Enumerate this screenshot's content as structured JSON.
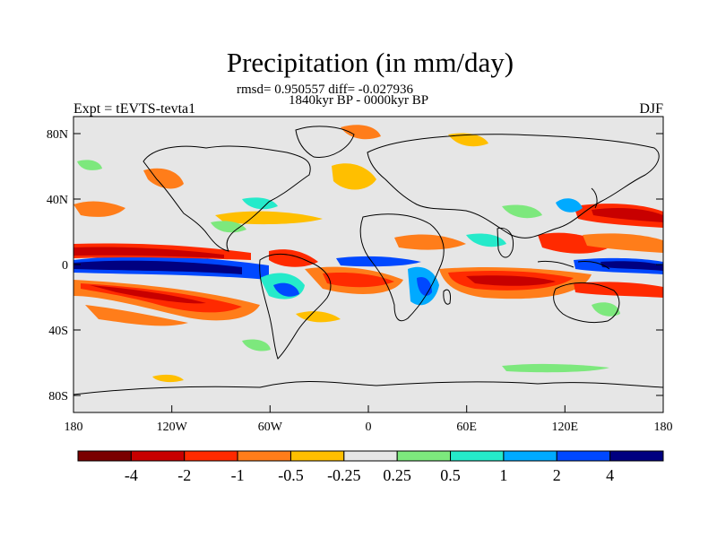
{
  "title": "Precipitation (in mm/day)",
  "stats": "rmsd= 0.950557 diff= -0.027936",
  "period": "1840kyr BP - 0000kyr BP",
  "experiment": "Expt = tEVTS-tevta1",
  "season": "DJF",
  "lat_labels": [
    "80N",
    "40N",
    "0",
    "40S",
    "80S"
  ],
  "lon_labels": [
    "180",
    "120W",
    "60W",
    "0",
    "60E",
    "120E",
    "180"
  ],
  "colorbar": {
    "labels": [
      "-4",
      "-2",
      "-1",
      "-0.5",
      "-0.25",
      "0.25",
      "0.5",
      "1",
      "2",
      "4"
    ],
    "colors": [
      "#7a0000",
      "#c80000",
      "#ff2a00",
      "#ff7d1a",
      "#ffbf00",
      "#e6e6e6",
      "#7de87d",
      "#25eaca",
      "#00aaff",
      "#0048ff",
      "#000080"
    ]
  },
  "palette": {
    "background": "#e6e6e6",
    "dark_red": "#7a0000",
    "red": "#c80000",
    "orange_red": "#ff2a00",
    "orange": "#ff7d1a",
    "amber": "#ffbf00",
    "light_green": "#7de87d",
    "teal": "#25eaca",
    "light_blue": "#00aaff",
    "blue": "#0048ff",
    "navy": "#000080"
  }
}
